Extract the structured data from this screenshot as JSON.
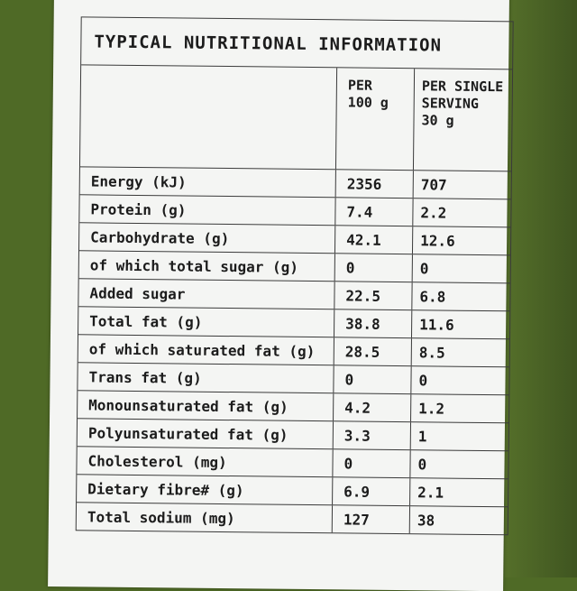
{
  "table": {
    "title": "TYPICAL NUTRITIONAL INFORMATION",
    "col_per_100g": [
      "PER",
      "100 g"
    ],
    "col_per_serving": [
      "PER SINGLE",
      "SERVING",
      "30 g"
    ],
    "rows": [
      {
        "label": "Energy (kJ)",
        "per_100g": "2356",
        "per_serving": "707"
      },
      {
        "label": "Protein (g)",
        "per_100g": "7.4",
        "per_serving": "2.2"
      },
      {
        "label": "Carbohydrate (g)",
        "per_100g": "42.1",
        "per_serving": "12.6"
      },
      {
        "label": "of which total sugar (g)",
        "per_100g": "0",
        "per_serving": "0"
      },
      {
        "label": "Added sugar",
        "per_100g": "22.5",
        "per_serving": "6.8"
      },
      {
        "label": "Total fat (g)",
        "per_100g": "38.8",
        "per_serving": "11.6"
      },
      {
        "label": "of which saturated fat (g)",
        "per_100g": "28.5",
        "per_serving": "8.5"
      },
      {
        "label": "Trans fat (g)",
        "per_100g": "0",
        "per_serving": "0"
      },
      {
        "label": "Monounsaturated fat (g)",
        "per_100g": "4.2",
        "per_serving": "1.2"
      },
      {
        "label": "Polyunsaturated fat (g)",
        "per_100g": "3.3",
        "per_serving": "1"
      },
      {
        "label": "Cholesterol (mg)",
        "per_100g": "0",
        "per_serving": "0"
      },
      {
        "label": "Dietary fibre# (g)",
        "per_100g": "6.9",
        "per_serving": "2.1"
      },
      {
        "label": "Total sodium (mg)",
        "per_100g": "127",
        "per_serving": "38"
      }
    ]
  },
  "colors": {
    "background": "#4f6a26",
    "card": "#f4f5f3",
    "ink": "#1c1c1c"
  }
}
